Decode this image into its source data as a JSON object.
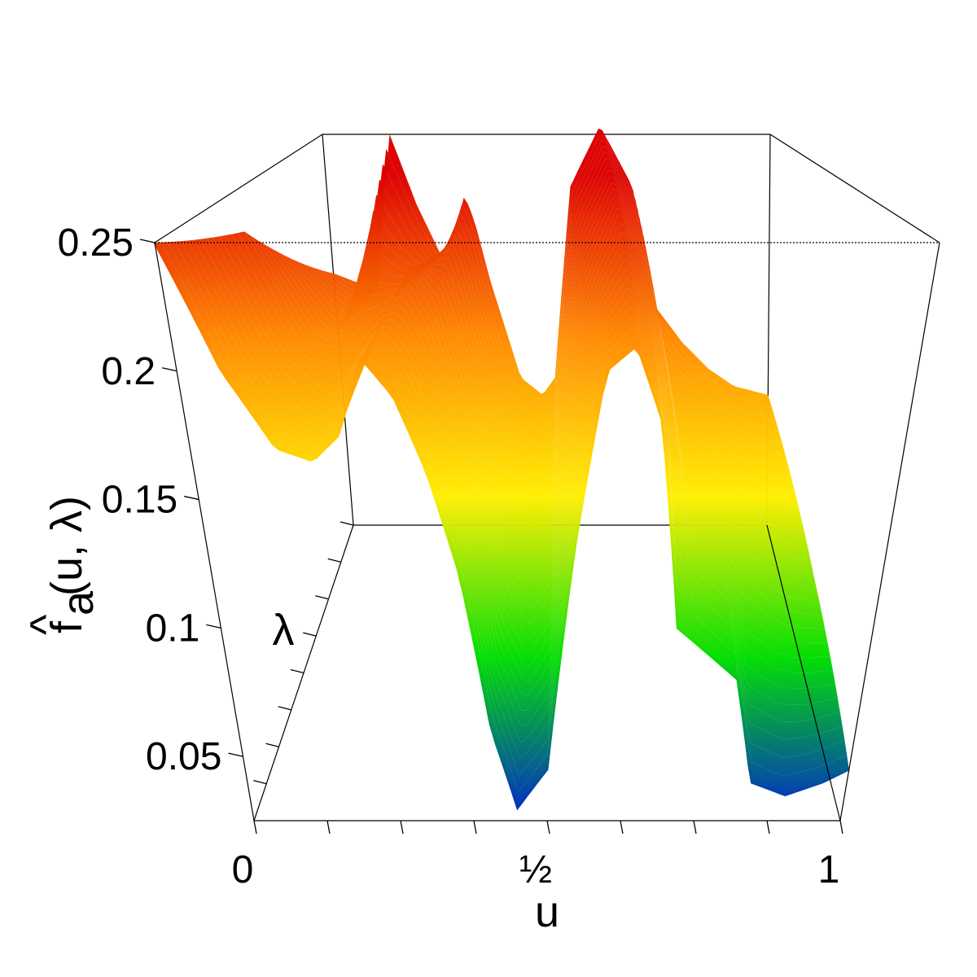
{
  "chart_data": {
    "type": "surface",
    "title": "",
    "xlabel": "u",
    "ylabel": "λ",
    "zlabel": "f̂a(u, λ)",
    "zlabel_parts": {
      "hat": "^",
      "base": "f",
      "sub": "a",
      "args": "(u, λ)"
    },
    "x_tick_labels": [
      "0",
      "½",
      "1"
    ],
    "x_ticks": [
      0,
      0.5,
      1
    ],
    "x_minor_ticks": [
      0.125,
      0.25,
      0.375,
      0.625,
      0.75,
      0.875
    ],
    "z_tick_labels": [
      "0.05",
      "0.1",
      "0.15",
      "0.2",
      "0.25"
    ],
    "z_ticks": [
      0.05,
      0.1,
      0.15,
      0.2,
      0.25
    ],
    "xlim": [
      0,
      1
    ],
    "ylim": [
      0,
      1
    ],
    "zlim": [
      0.025,
      0.25
    ],
    "colormap": [
      "#0022cc",
      "#00dd00",
      "#ffee00",
      "#ff8800",
      "#dd0000"
    ],
    "profiles": [
      {
        "lambda": 1,
        "values": [
          [
            0,
            0.17
          ],
          [
            0.05,
            0.165
          ],
          [
            0.1,
            0.16
          ],
          [
            0.12,
            0.2
          ],
          [
            0.15,
            0.25
          ],
          [
            0.2,
            0.21
          ],
          [
            0.25,
            0.18
          ],
          [
            0.28,
            0.19
          ],
          [
            0.31,
            0.215
          ],
          [
            0.33,
            0.2
          ],
          [
            0.36,
            0.165
          ],
          [
            0.42,
            0.11
          ],
          [
            0.47,
            0.1
          ],
          [
            0.5,
            0.11
          ],
          [
            0.55,
            0.22
          ],
          [
            0.62,
            0.255
          ],
          [
            0.69,
            0.22
          ],
          [
            0.74,
            0.15
          ],
          [
            0.8,
            0.13
          ],
          [
            0.86,
            0.115
          ],
          [
            0.92,
            0.105
          ],
          [
            1,
            0.1
          ]
        ]
      },
      {
        "lambda": 0.5,
        "values": [
          [
            0,
            0.23
          ],
          [
            0.08,
            0.18
          ],
          [
            0.15,
            0.165
          ],
          [
            0.22,
            0.19
          ],
          [
            0.27,
            0.215
          ],
          [
            0.31,
            0.195
          ],
          [
            0.36,
            0.15
          ],
          [
            0.41,
            0.08
          ],
          [
            0.46,
            0.06
          ],
          [
            0.5,
            0.075
          ],
          [
            0.56,
            0.2
          ],
          [
            0.62,
            0.24
          ],
          [
            0.68,
            0.2
          ],
          [
            0.74,
            0.12
          ],
          [
            0.8,
            0.105
          ],
          [
            0.86,
            0.09
          ],
          [
            0.93,
            0.075
          ],
          [
            1,
            0.07
          ]
        ]
      },
      {
        "lambda": 0,
        "values": [
          [
            0,
            0.25
          ],
          [
            0.06,
            0.2
          ],
          [
            0.12,
            0.17
          ],
          [
            0.17,
            0.165
          ],
          [
            0.21,
            0.175
          ],
          [
            0.25,
            0.205
          ],
          [
            0.29,
            0.19
          ],
          [
            0.33,
            0.16
          ],
          [
            0.37,
            0.12
          ],
          [
            0.41,
            0.06
          ],
          [
            0.45,
            0.03
          ],
          [
            0.5,
            0.045
          ],
          [
            0.54,
            0.13
          ],
          [
            0.58,
            0.2
          ],
          [
            0.62,
            0.21
          ],
          [
            0.66,
            0.18
          ],
          [
            0.7,
            0.1
          ],
          [
            0.75,
            0.09
          ],
          [
            0.8,
            0.08
          ],
          [
            0.84,
            0.04
          ],
          [
            0.9,
            0.035
          ],
          [
            0.96,
            0.04
          ],
          [
            1,
            0.045
          ]
        ]
      }
    ]
  }
}
